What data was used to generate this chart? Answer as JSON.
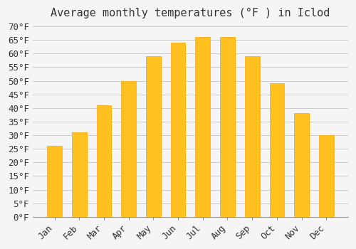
{
  "title": "Average monthly temperatures (°F ) in Iclod",
  "months": [
    "Jan",
    "Feb",
    "Mar",
    "Apr",
    "May",
    "Jun",
    "Jul",
    "Aug",
    "Sep",
    "Oct",
    "Nov",
    "Dec"
  ],
  "values": [
    26,
    31,
    41,
    50,
    59,
    64,
    66,
    66,
    59,
    49,
    38,
    30
  ],
  "bar_color_face": "#FFC020",
  "bar_color_edge": "#FFA500",
  "background_color": "#F5F5F5",
  "grid_color": "#CCCCCC",
  "title_color": "#333333",
  "tick_label_color": "#333333",
  "ylim": [
    0,
    70
  ],
  "yticks": [
    0,
    5,
    10,
    15,
    20,
    25,
    30,
    35,
    40,
    45,
    50,
    55,
    60,
    65,
    70
  ],
  "ytick_labels": [
    "0°F",
    "5°F",
    "10°F",
    "15°F",
    "20°F",
    "25°F",
    "30°F",
    "35°F",
    "40°F",
    "45°F",
    "50°F",
    "55°F",
    "60°F",
    "65°F",
    "70°F"
  ],
  "title_fontsize": 11,
  "tick_fontsize": 9,
  "figsize": [
    5.0,
    3.5
  ],
  "dpi": 100
}
